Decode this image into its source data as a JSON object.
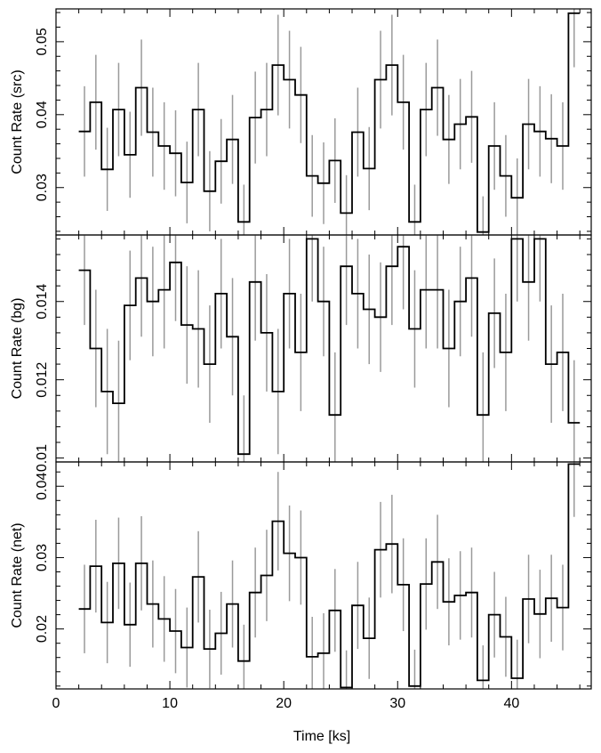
{
  "chart_data": [
    {
      "type": "line",
      "drawstyle": "steps-with-error-bars",
      "ylabel": "Count Rate (src)",
      "ylim": [
        0.0235,
        0.0545
      ],
      "xlim": [
        0,
        47
      ],
      "yticks": [
        0.03,
        0.04,
        0.05
      ],
      "ytick_labels": [
        "0.03",
        "0.04",
        "0.05"
      ],
      "series": [
        {
          "x": [
            2.5,
            3.5,
            4.5,
            5.5,
            6.5,
            7.5,
            8.5,
            9.5,
            10.5,
            11.5,
            12.5,
            13.5,
            14.5,
            15.5,
            16.5,
            17.5,
            18.5,
            19.5,
            20.5,
            21.5,
            22.5,
            23.5,
            24.5,
            25.5,
            26.5,
            27.5,
            28.5,
            29.5,
            30.5,
            31.5,
            32.5,
            33.5,
            34.5,
            35.5,
            36.5,
            37.5,
            38.5,
            39.5,
            40.5,
            41.5,
            42.5,
            43.5,
            44.5,
            45.5
          ],
          "values": [
            0.0377,
            0.0417,
            0.0325,
            0.0407,
            0.0345,
            0.0437,
            0.0376,
            0.0357,
            0.0347,
            0.0307,
            0.0407,
            0.0295,
            0.0336,
            0.0366,
            0.0253,
            0.0396,
            0.0407,
            0.0468,
            0.0448,
            0.0427,
            0.0316,
            0.0306,
            0.0337,
            0.0265,
            0.0376,
            0.0326,
            0.0448,
            0.0468,
            0.0417,
            0.0253,
            0.0407,
            0.0437,
            0.0366,
            0.0387,
            0.0397,
            0.0239,
            0.0357,
            0.0316,
            0.0286,
            0.0387,
            0.0377,
            0.0367,
            0.0357,
            0.0539
          ],
          "errors": [
            0.0062,
            0.0065,
            0.0057,
            0.0064,
            0.0059,
            0.0066,
            0.0061,
            0.006,
            0.0059,
            0.0056,
            0.0064,
            0.0055,
            0.0058,
            0.0061,
            0.0051,
            0.0063,
            0.0064,
            0.0069,
            0.0067,
            0.0066,
            0.0056,
            0.0056,
            0.0058,
            0.0052,
            0.0061,
            0.0057,
            0.0067,
            0.0069,
            0.0065,
            0.0051,
            0.0064,
            0.0066,
            0.0061,
            0.0062,
            0.0063,
            0.0049,
            0.006,
            0.0056,
            0.0054,
            0.0062,
            0.0062,
            0.0061,
            0.006,
            0.0074
          ]
        }
      ]
    },
    {
      "type": "line",
      "drawstyle": "steps-with-error-bars",
      "ylabel": "Count Rate (bg)",
      "ylim": [
        0.0099,
        0.0157
      ],
      "xlim": [
        0,
        47
      ],
      "yticks": [
        0.01,
        0.012,
        0.014
      ],
      "ytick_labels": [
        "0.01",
        "0.012",
        "0.014"
      ],
      "series": [
        {
          "x": [
            2.5,
            3.5,
            4.5,
            5.5,
            6.5,
            7.5,
            8.5,
            9.5,
            10.5,
            11.5,
            12.5,
            13.5,
            14.5,
            15.5,
            16.5,
            17.5,
            18.5,
            19.5,
            20.5,
            21.5,
            22.5,
            23.5,
            24.5,
            25.5,
            26.5,
            27.5,
            28.5,
            29.5,
            30.5,
            31.5,
            32.5,
            33.5,
            34.5,
            35.5,
            36.5,
            37.5,
            38.5,
            39.5,
            40.5,
            41.5,
            42.5,
            43.5,
            44.5,
            45.5
          ],
          "values": [
            0.0148,
            0.0128,
            0.0117,
            0.0114,
            0.0139,
            0.0146,
            0.014,
            0.0143,
            0.015,
            0.0134,
            0.0133,
            0.0124,
            0.0142,
            0.0131,
            0.0101,
            0.0145,
            0.0132,
            0.0117,
            0.0142,
            0.0127,
            0.0156,
            0.014,
            0.0111,
            0.0149,
            0.0142,
            0.0138,
            0.0136,
            0.0149,
            0.0154,
            0.0133,
            0.0143,
            0.0143,
            0.0128,
            0.014,
            0.0146,
            0.0111,
            0.0137,
            0.0127,
            0.0156,
            0.0145,
            0.0156,
            0.0124,
            0.0127,
            0.0109
          ],
          "errors": [
            0.0014,
            0.0015,
            0.0016,
            0.0016,
            0.0014,
            0.0015,
            0.0014,
            0.0015,
            0.0015,
            0.0015,
            0.0015,
            0.0015,
            0.0014,
            0.0015,
            0.0015,
            0.0015,
            0.0015,
            0.0016,
            0.0014,
            0.0015,
            0.0016,
            0.0014,
            0.0016,
            0.0015,
            0.0014,
            0.0014,
            0.0014,
            0.0015,
            0.0016,
            0.0015,
            0.0015,
            0.0015,
            0.0015,
            0.0014,
            0.0015,
            0.0016,
            0.0014,
            0.0015,
            0.0016,
            0.0015,
            0.0016,
            0.0015,
            0.0015,
            0.0016
          ]
        }
      ]
    },
    {
      "type": "line",
      "drawstyle": "steps-with-error-bars",
      "ylabel": "Count Rate (net)",
      "ylim": [
        0.0116,
        0.0434
      ],
      "xlim": [
        0,
        47
      ],
      "yticks": [
        0.02,
        0.03,
        0.04
      ],
      "ytick_labels": [
        "0.02",
        "0.03",
        "0.04"
      ],
      "series": [
        {
          "x": [
            2.5,
            3.5,
            4.5,
            5.5,
            6.5,
            7.5,
            8.5,
            9.5,
            10.5,
            11.5,
            12.5,
            13.5,
            14.5,
            15.5,
            16.5,
            17.5,
            18.5,
            19.5,
            20.5,
            21.5,
            22.5,
            23.5,
            24.5,
            25.5,
            26.5,
            27.5,
            28.5,
            29.5,
            30.5,
            31.5,
            32.5,
            33.5,
            34.5,
            35.5,
            36.5,
            37.5,
            38.5,
            39.5,
            40.5,
            41.5,
            42.5,
            43.5,
            44.5,
            45.5
          ],
          "values": [
            0.0228,
            0.0288,
            0.0209,
            0.0292,
            0.0206,
            0.0292,
            0.0235,
            0.0214,
            0.0197,
            0.0174,
            0.0273,
            0.0172,
            0.0194,
            0.0235,
            0.0155,
            0.0251,
            0.0275,
            0.0351,
            0.0306,
            0.03,
            0.0161,
            0.0166,
            0.0226,
            0.0118,
            0.0233,
            0.0187,
            0.0311,
            0.0319,
            0.0262,
            0.012,
            0.0263,
            0.0294,
            0.0238,
            0.0247,
            0.0251,
            0.0128,
            0.022,
            0.0189,
            0.0131,
            0.0242,
            0.0221,
            0.0243,
            0.023,
            0.0431
          ],
          "errors": [
            0.0062,
            0.0065,
            0.0057,
            0.0064,
            0.0059,
            0.0066,
            0.0061,
            0.006,
            0.0059,
            0.0056,
            0.0064,
            0.0055,
            0.0058,
            0.0061,
            0.0051,
            0.0063,
            0.0064,
            0.0069,
            0.0067,
            0.0066,
            0.0056,
            0.0056,
            0.0058,
            0.0052,
            0.0061,
            0.0057,
            0.0067,
            0.0069,
            0.0065,
            0.0051,
            0.0064,
            0.0066,
            0.0061,
            0.0062,
            0.0063,
            0.0049,
            0.006,
            0.0056,
            0.0054,
            0.0062,
            0.0062,
            0.0061,
            0.006,
            0.0074
          ]
        }
      ]
    }
  ],
  "x_axis": {
    "label": "Time [ks]",
    "ticks": [
      0,
      10,
      20,
      30,
      40
    ],
    "tick_labels": [
      "0",
      "10",
      "20",
      "30",
      "40"
    ]
  },
  "colors": {
    "line": "#000000",
    "error_bars": "#9a9a9a",
    "frame": "#000000",
    "background": "#ffffff"
  }
}
